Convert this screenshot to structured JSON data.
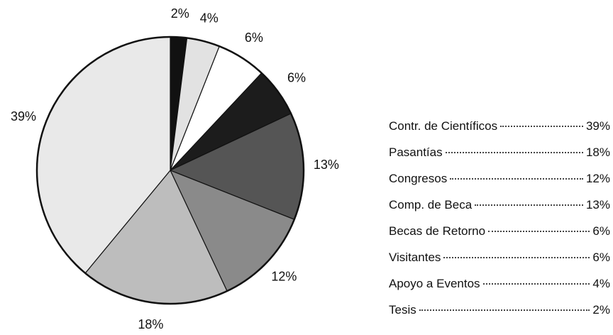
{
  "chart_data": {
    "type": "pie",
    "categories": [
      "Tesis",
      "Apoyo a Eventos",
      "Visitantes",
      "Becas de Retorno",
      "Comp. de Beca",
      "Congresos",
      "Pasantías",
      "Contr. de Científicos"
    ],
    "values": [
      2,
      4,
      6,
      6,
      13,
      12,
      18,
      39
    ],
    "value_labels": [
      "2%",
      "4%",
      "6%",
      "6%",
      "13%",
      "12%",
      "18%",
      "39%"
    ],
    "colors": [
      "#111111",
      "#e2e2e2",
      "#ffffff",
      "#1c1c1c",
      "#555555",
      "#8a8a8a",
      "#bdbdbd",
      "#e9e9e9"
    ]
  }
}
